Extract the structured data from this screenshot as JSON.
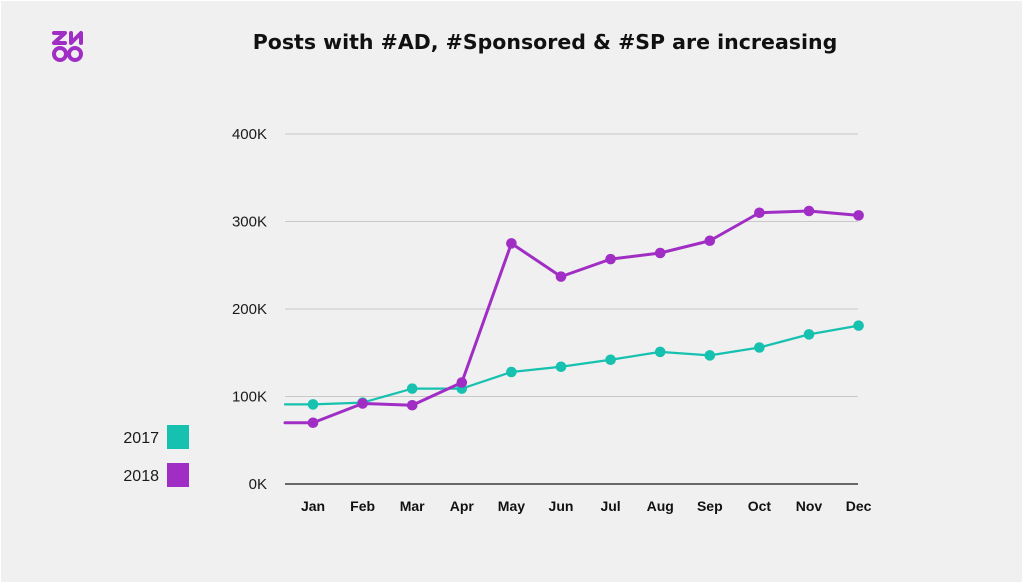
{
  "chart_data": {
    "type": "line",
    "title": "Posts with #AD, #Sponsored & #SP are increasing",
    "categories": [
      "Jan",
      "Feb",
      "Mar",
      "Apr",
      "May",
      "Jun",
      "Jul",
      "Aug",
      "Sep",
      "Oct",
      "Nov",
      "Dec"
    ],
    "y_ticks": [
      "0K",
      "100K",
      "200K",
      "300K",
      "400K"
    ],
    "ylim": [
      0,
      400000
    ],
    "grid": true,
    "legend_position": "bottom-left",
    "series": [
      {
        "name": "2017",
        "color": "#16c1b0",
        "values": [
          91000,
          93000,
          109000,
          109000,
          128000,
          134000,
          142000,
          151000,
          147000,
          156000,
          171000,
          181000
        ]
      },
      {
        "name": "2018",
        "color": "#a12ec4",
        "values": [
          70000,
          92000,
          90000,
          116000,
          275000,
          237000,
          257000,
          264000,
          278000,
          310000,
          312000,
          307000
        ]
      }
    ]
  },
  "logo_color": "#a12ec4"
}
